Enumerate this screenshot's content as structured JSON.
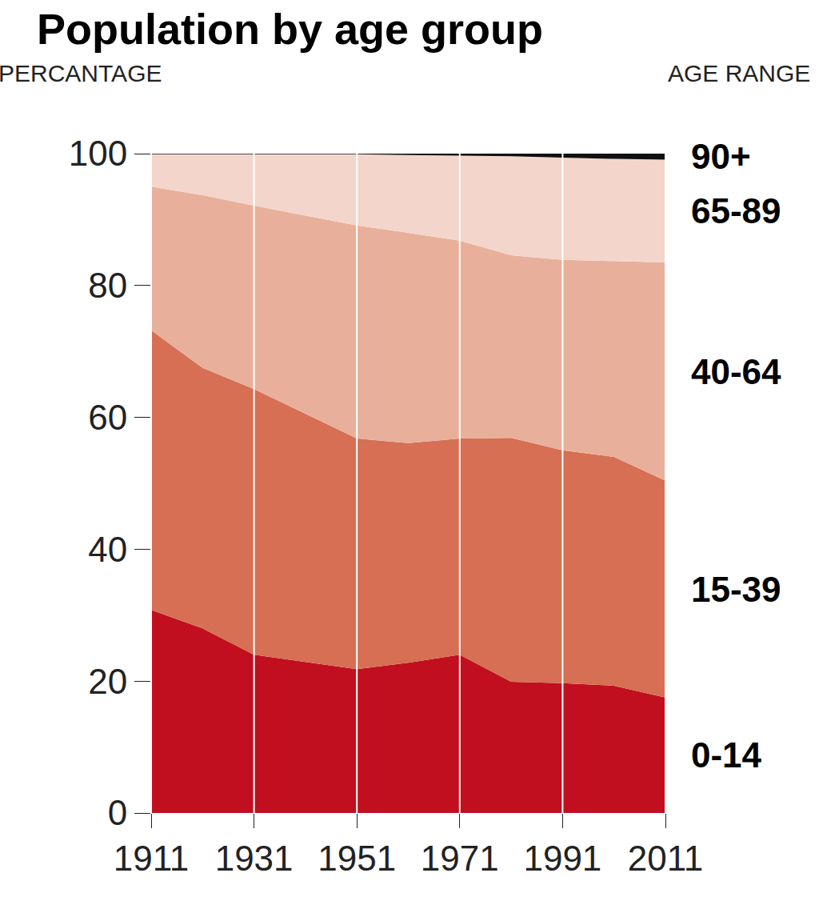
{
  "chart_data": {
    "type": "area",
    "title": "Population by age group",
    "ylabel": "PERCANTAGE",
    "legend_title": "AGE RANGE",
    "x": [
      1911,
      1921,
      1931,
      1951,
      1961,
      1971,
      1981,
      1991,
      2001,
      2011
    ],
    "series": [
      {
        "name": "0-14",
        "color": "#c10f20",
        "values": [
          30.8,
          28.0,
          24.0,
          21.8,
          22.8,
          24.0,
          19.9,
          19.7,
          19.3,
          17.5
        ]
      },
      {
        "name": "15-39",
        "color": "#d66f53",
        "values": [
          42.4,
          39.5,
          40.3,
          35.0,
          33.3,
          32.8,
          37.0,
          35.3,
          34.7,
          32.9
        ]
      },
      {
        "name": "40-64",
        "color": "#e8b09a",
        "values": [
          21.8,
          26.2,
          27.8,
          32.3,
          31.9,
          30.0,
          27.7,
          28.9,
          29.7,
          33.1
        ]
      },
      {
        "name": "65-89",
        "color": "#f4d5cb",
        "values": [
          4.9,
          6.2,
          7.8,
          10.8,
          11.8,
          12.9,
          15.0,
          15.5,
          15.5,
          15.6
        ]
      },
      {
        "name": "90+",
        "color": "#111111",
        "values": [
          0.1,
          0.1,
          0.1,
          0.1,
          0.2,
          0.3,
          0.4,
          0.6,
          0.8,
          0.9
        ]
      }
    ],
    "xlim": [
      1911,
      2011
    ],
    "xticks": [
      1911,
      1931,
      1951,
      1971,
      1991,
      2011
    ],
    "ylim": [
      0,
      100
    ],
    "yticks": [
      0,
      20,
      40,
      60,
      80,
      100
    ],
    "stacked": true,
    "grid": true
  }
}
